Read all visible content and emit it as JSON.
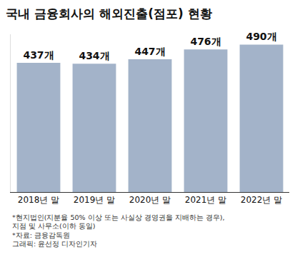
{
  "chart_data": {
    "type": "bar",
    "title": "국내 금융회사의 해외진출(점포) 현황",
    "categories": [
      "2018년 말",
      "2019년 말",
      "2020년 말",
      "2021년 말",
      "2022년 말"
    ],
    "values": [
      437,
      434,
      447,
      476,
      490
    ],
    "value_labels": [
      "437개",
      "434개",
      "447개",
      "476개",
      "490개"
    ],
    "data_labels": true,
    "color": "#a3b3c9",
    "ylim": [
      60,
      520
    ],
    "yticks": [],
    "tick_labels": "x",
    "grid": false,
    "notes": [
      "*현지법인(지분율 50% 이상 또는 사실상 경영권을 지배하는 경우),",
      "지점 및 사무소(이하 동일)",
      "*자료: 금융감독원",
      "그래픽: 윤선정 디자인기자"
    ]
  }
}
